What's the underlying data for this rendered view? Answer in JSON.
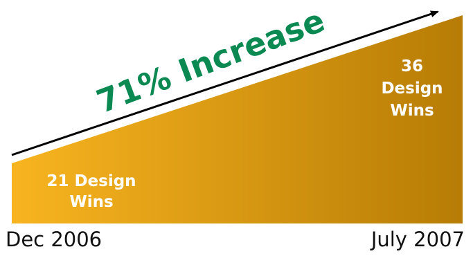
{
  "diagram": {
    "start_value_label": "21 Design\nWins",
    "end_value_label": "36\nDesign\nWins",
    "increase_label": "71% Increase",
    "start_date": "Dec 2006",
    "end_date": "July 2007"
  },
  "colors": {
    "wedge_light": "#f8b420",
    "wedge_dark": "#b77c05",
    "increase_text": "#0a8a52",
    "arrow": "#000000",
    "date_text": "#111111"
  }
}
